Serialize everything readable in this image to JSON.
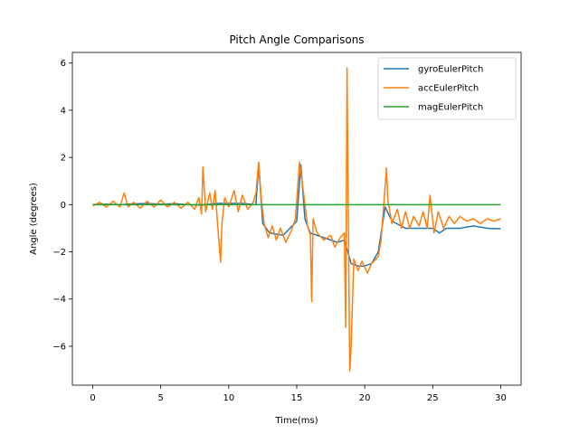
{
  "chart_data": {
    "type": "line",
    "title": "Pitch Angle Comparisons",
    "xlabel": "Time(ms)",
    "ylabel": "Angle (degrees)",
    "xlim": [
      -1.5,
      31.5
    ],
    "ylim": [
      -7.65,
      6.45
    ],
    "xticks": [
      0,
      5,
      10,
      15,
      20,
      25,
      30
    ],
    "yticks": [
      -6,
      -4,
      -2,
      0,
      2,
      4,
      6
    ],
    "grid": false,
    "legend": "top-right",
    "series": [
      {
        "name": "gyroEulerPitch",
        "color": "#1f77b4",
        "points": [
          [
            0,
            0.0
          ],
          [
            1,
            0.02
          ],
          [
            2,
            0.0
          ],
          [
            3,
            0.03
          ],
          [
            4,
            0.05
          ],
          [
            5,
            0.02
          ],
          [
            6,
            0.04
          ],
          [
            7,
            0.0
          ],
          [
            8,
            -0.02
          ],
          [
            9,
            0.05
          ],
          [
            10,
            0.05
          ],
          [
            11,
            0.05
          ],
          [
            12,
            0.0
          ],
          [
            12.2,
            1.7
          ],
          [
            12.5,
            -0.8
          ],
          [
            13,
            -1.2
          ],
          [
            14,
            -1.3
          ],
          [
            15,
            -0.7
          ],
          [
            15.3,
            1.7
          ],
          [
            15.6,
            -0.6
          ],
          [
            16,
            -1.2
          ],
          [
            17,
            -1.4
          ],
          [
            18,
            -1.6
          ],
          [
            18.5,
            -1.5
          ],
          [
            19,
            -2.5
          ],
          [
            19.5,
            -2.6
          ],
          [
            20,
            -2.6
          ],
          [
            20.5,
            -2.5
          ],
          [
            21,
            -2.0
          ],
          [
            21.5,
            -0.1
          ],
          [
            22,
            -0.7
          ],
          [
            23,
            -1.0
          ],
          [
            24,
            -1.0
          ],
          [
            25,
            -1.0
          ],
          [
            25.5,
            -1.2
          ],
          [
            26,
            -1.0
          ],
          [
            27,
            -1.0
          ],
          [
            28,
            -0.9
          ],
          [
            29,
            -1.0
          ],
          [
            30,
            -1.02
          ]
        ]
      },
      {
        "name": "accEulerPitch",
        "color": "#ff7f0e",
        "points": [
          [
            0,
            -0.05
          ],
          [
            0.5,
            0.1
          ],
          [
            1,
            -0.1
          ],
          [
            1.5,
            0.15
          ],
          [
            2,
            -0.1
          ],
          [
            2.3,
            0.5
          ],
          [
            2.6,
            -0.1
          ],
          [
            3,
            0.1
          ],
          [
            3.5,
            -0.15
          ],
          [
            4,
            0.15
          ],
          [
            4.5,
            -0.1
          ],
          [
            5,
            0.2
          ],
          [
            5.5,
            -0.1
          ],
          [
            6,
            0.1
          ],
          [
            6.5,
            -0.15
          ],
          [
            7,
            0.1
          ],
          [
            7.5,
            -0.2
          ],
          [
            7.8,
            0.3
          ],
          [
            8,
            -0.4
          ],
          [
            8.1,
            1.6
          ],
          [
            8.3,
            -0.3
          ],
          [
            8.6,
            0.5
          ],
          [
            8.8,
            -0.2
          ],
          [
            9,
            0.6
          ],
          [
            9.2,
            -1.0
          ],
          [
            9.4,
            -2.45
          ],
          [
            9.5,
            -0.8
          ],
          [
            9.7,
            0.3
          ],
          [
            10,
            -0.1
          ],
          [
            10.4,
            0.6
          ],
          [
            10.7,
            -0.3
          ],
          [
            11,
            0.4
          ],
          [
            11.4,
            -0.2
          ],
          [
            11.8,
            0.1
          ],
          [
            12.0,
            0.5
          ],
          [
            12.2,
            1.8
          ],
          [
            12.4,
            0.2
          ],
          [
            12.6,
            -0.8
          ],
          [
            12.9,
            -1.4
          ],
          [
            13.2,
            -0.9
          ],
          [
            13.5,
            -1.5
          ],
          [
            13.8,
            -1.0
          ],
          [
            14.2,
            -1.6
          ],
          [
            14.6,
            -1.1
          ],
          [
            14.9,
            -0.6
          ],
          [
            15.2,
            1.8
          ],
          [
            15.5,
            0.5
          ],
          [
            15.8,
            -0.9
          ],
          [
            16.0,
            -1.3
          ],
          [
            16.1,
            -4.1
          ],
          [
            16.2,
            -0.6
          ],
          [
            16.5,
            -1.2
          ],
          [
            17,
            -1.5
          ],
          [
            17.5,
            -1.3
          ],
          [
            17.8,
            -1.8
          ],
          [
            18.2,
            -1.4
          ],
          [
            18.5,
            -1.2
          ],
          [
            18.6,
            -5.2
          ],
          [
            18.7,
            5.8
          ],
          [
            18.8,
            -1.0
          ],
          [
            18.9,
            -7.05
          ],
          [
            19.0,
            -6.0
          ],
          [
            19.2,
            -2.3
          ],
          [
            19.5,
            -2.8
          ],
          [
            19.8,
            -2.4
          ],
          [
            20.2,
            -2.9
          ],
          [
            20.5,
            -2.5
          ],
          [
            21.0,
            -2.2
          ],
          [
            21.2,
            -1.5
          ],
          [
            21.4,
            0.0
          ],
          [
            21.6,
            1.55
          ],
          [
            21.7,
            0.2
          ],
          [
            22.0,
            -0.8
          ],
          [
            22.4,
            -0.2
          ],
          [
            22.7,
            -1.0
          ],
          [
            23.0,
            -0.3
          ],
          [
            23.3,
            -1.0
          ],
          [
            23.6,
            -0.5
          ],
          [
            24.0,
            -0.9
          ],
          [
            24.3,
            -0.3
          ],
          [
            24.6,
            -1.0
          ],
          [
            24.8,
            0.4
          ],
          [
            25.1,
            -1.2
          ],
          [
            25.4,
            -0.3
          ],
          [
            25.8,
            -1.0
          ],
          [
            26.2,
            -0.5
          ],
          [
            26.6,
            -0.8
          ],
          [
            27.0,
            -0.5
          ],
          [
            27.5,
            -0.7
          ],
          [
            28,
            -0.6
          ],
          [
            28.5,
            -0.8
          ],
          [
            29,
            -0.6
          ],
          [
            29.5,
            -0.7
          ],
          [
            30,
            -0.6
          ]
        ]
      },
      {
        "name": "magEulerPitch",
        "color": "#2ca02c",
        "points": [
          [
            0,
            0.0
          ],
          [
            30,
            0.0
          ]
        ]
      }
    ]
  }
}
